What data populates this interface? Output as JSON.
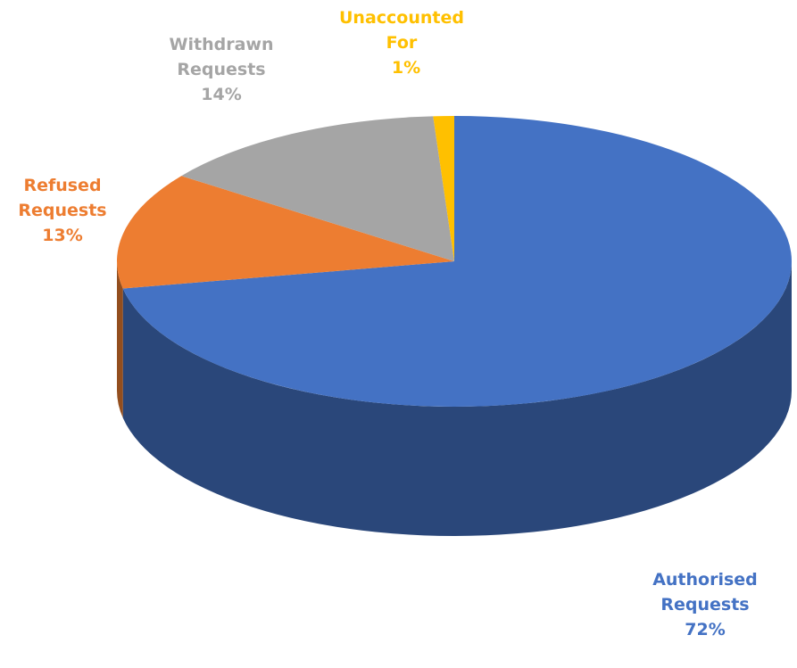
{
  "chart_data": {
    "type": "pie",
    "categories": [
      "Authorised Requests",
      "Refused Requests",
      "Withdrawn Requests",
      "Unaccounted For"
    ],
    "values": [
      72,
      13,
      14,
      1
    ],
    "value_labels": [
      "72%",
      "13%",
      "14%",
      "1%"
    ],
    "colors": [
      "#4472c4",
      "#ed7d31",
      "#a5a5a5",
      "#ffc000"
    ]
  }
}
